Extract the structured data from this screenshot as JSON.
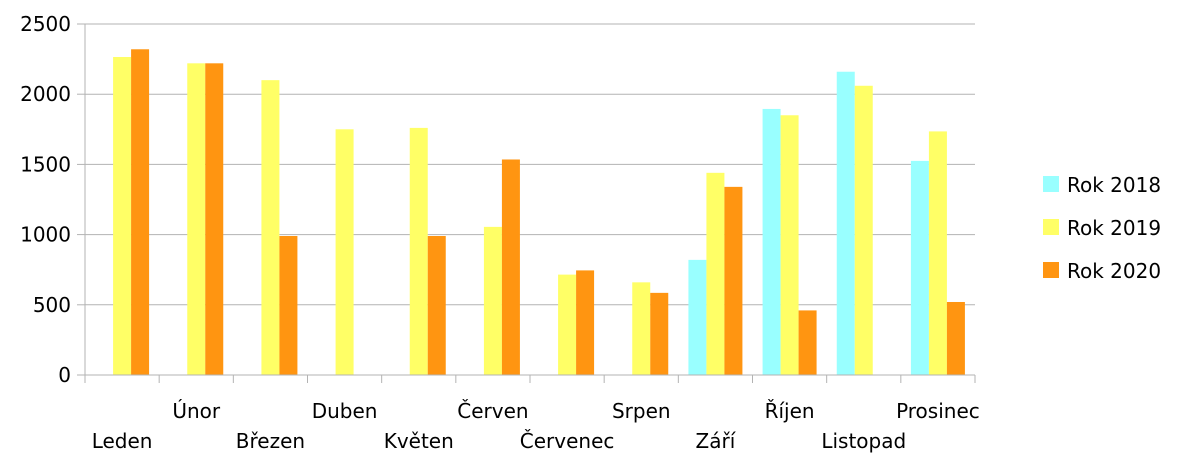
{
  "chart_data": {
    "type": "bar",
    "title": "",
    "xlabel": "",
    "ylabel": "",
    "ylim": [
      0,
      2500
    ],
    "yticks": [
      0,
      500,
      1000,
      1500,
      2000,
      2500
    ],
    "grid": true,
    "legend_position": "right",
    "categories": [
      "Leden",
      "Únor",
      "Březen",
      "Duben",
      "Květen",
      "Červen",
      "Červenec",
      "Srpen",
      "Září",
      "Říjen",
      "Listopad",
      "Prosinec"
    ],
    "series": [
      {
        "name": "Rok 2018",
        "color": "#99ffff",
        "values": [
          0,
          0,
          0,
          0,
          0,
          0,
          0,
          0,
          820,
          1895,
          2160,
          1525
        ]
      },
      {
        "name": "Rok 2019",
        "color": "#ffff66",
        "values": [
          2265,
          2220,
          2100,
          1750,
          1760,
          1055,
          715,
          660,
          1440,
          1850,
          2060,
          1735
        ]
      },
      {
        "name": "Rok 2020",
        "color": "#ff9511",
        "values": [
          2320,
          2220,
          990,
          0,
          990,
          1535,
          745,
          585,
          1340,
          460,
          0,
          520
        ]
      }
    ]
  }
}
